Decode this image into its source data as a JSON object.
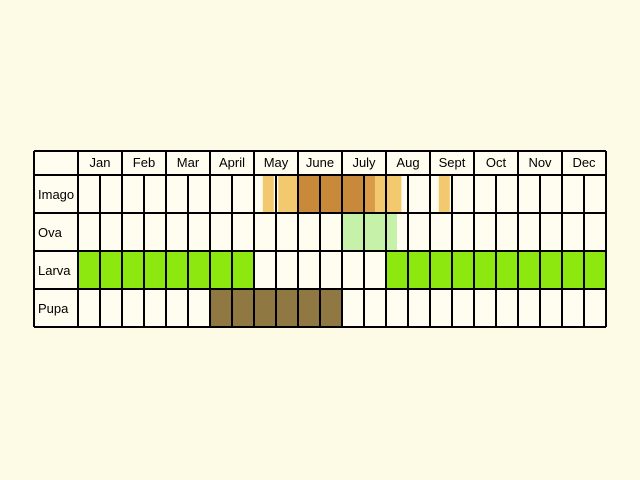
{
  "calendar": {
    "months": [
      "Jan",
      "Feb",
      "Mar",
      "April",
      "May",
      "June",
      "July",
      "Aug",
      "Sept",
      "Oct",
      "Nov",
      "Dec"
    ],
    "cells_per_month": 2,
    "colors": {
      "background": "#fdfbe6",
      "cell_empty": "#fffdef",
      "grid_line": "#000000",
      "imago_light": "#f3c970",
      "imago_mid": "#d89b48",
      "imago_dark": "#c8893a",
      "ova": "#c6f1a8",
      "larva": "#8de80f",
      "pupa": "#8f7841"
    },
    "rows": [
      {
        "label": "Imago",
        "bars": [
          {
            "from": "May",
            "part": 0.2,
            "to_part": 0.45,
            "color": "imago_light"
          },
          {
            "from": "May",
            "part": 0.55,
            "to": "May",
            "to_part": 1.0,
            "color": "imago_light"
          },
          {
            "from": "June",
            "part": 0.0,
            "to": "June",
            "to_part": 0.5,
            "color": "imago_dark"
          },
          {
            "from": "June",
            "part": 0.5,
            "to": "July",
            "to_part": 0.5,
            "color": "imago_dark"
          },
          {
            "from": "July",
            "part": 0.5,
            "to": "July",
            "to_part": 0.75,
            "color": "imago_mid"
          },
          {
            "from": "July",
            "part": 0.75,
            "to": "Aug",
            "to_part": 0.35,
            "color": "imago_light"
          },
          {
            "from": "Sept",
            "part": 0.2,
            "to": "Sept",
            "to_part": 0.45,
            "color": "imago_light"
          }
        ]
      },
      {
        "label": "Ova",
        "bars": [
          {
            "from": "July",
            "part": 0.0,
            "to": "Aug",
            "to_part": 0.25,
            "color": "ova"
          }
        ]
      },
      {
        "label": "Larva",
        "bars": [
          {
            "from": "Jan",
            "part": 0.0,
            "to": "April",
            "to_part": 1.0,
            "color": "larva"
          },
          {
            "from": "Aug",
            "part": 0.0,
            "to": "Dec",
            "to_part": 1.0,
            "color": "larva"
          }
        ]
      },
      {
        "label": "Pupa",
        "bars": [
          {
            "from": "April",
            "part": 0.0,
            "to": "June",
            "to_part": 1.0,
            "color": "pupa"
          }
        ]
      }
    ]
  }
}
